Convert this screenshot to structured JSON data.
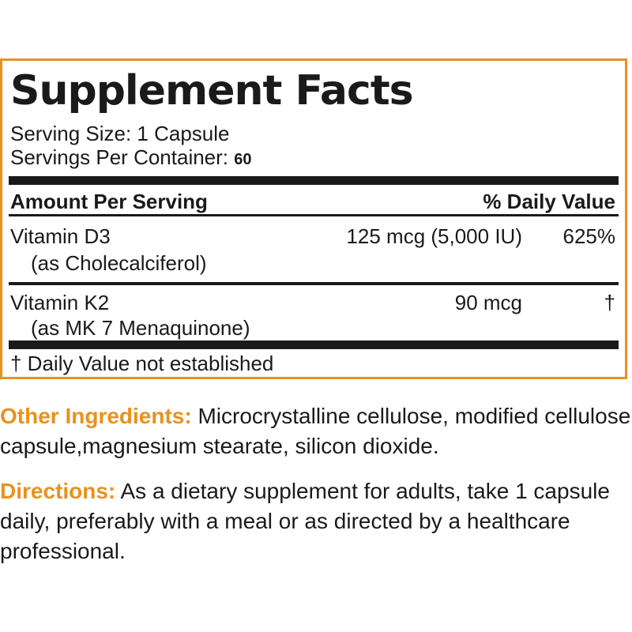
{
  "facts": {
    "title": "Supplement Facts",
    "serving_size": "Serving Size: 1 Capsule",
    "servings_per_label": "Servings Per Container: ",
    "servings_per_value": "60",
    "header_left": "Amount Per Serving",
    "header_right": "% Daily Value",
    "rows": [
      {
        "name": "Vitamin D3",
        "sub": "(as Cholecalciferol)",
        "amount": "125 mcg (5,000 IU)",
        "dv": "625%"
      },
      {
        "name": "Vitamin K2",
        "sub": "(as MK 7 Menaquinone)",
        "amount": "90 mcg",
        "dv": "†"
      }
    ],
    "footnote": "† Daily Value not established"
  },
  "other_ingredients": {
    "label": "Other Ingredients:",
    "text": " Microcrystalline cellulose, modified cellulose capsule,magnesium stearate, silicon dioxide."
  },
  "directions": {
    "label": "Directions:",
    "text": " As a dietary supplement for adults, take 1 capsule daily, preferably with a meal or as directed by a healthcare professional."
  },
  "colors": {
    "accent": "#e8921f",
    "text": "#1a1a1a"
  }
}
